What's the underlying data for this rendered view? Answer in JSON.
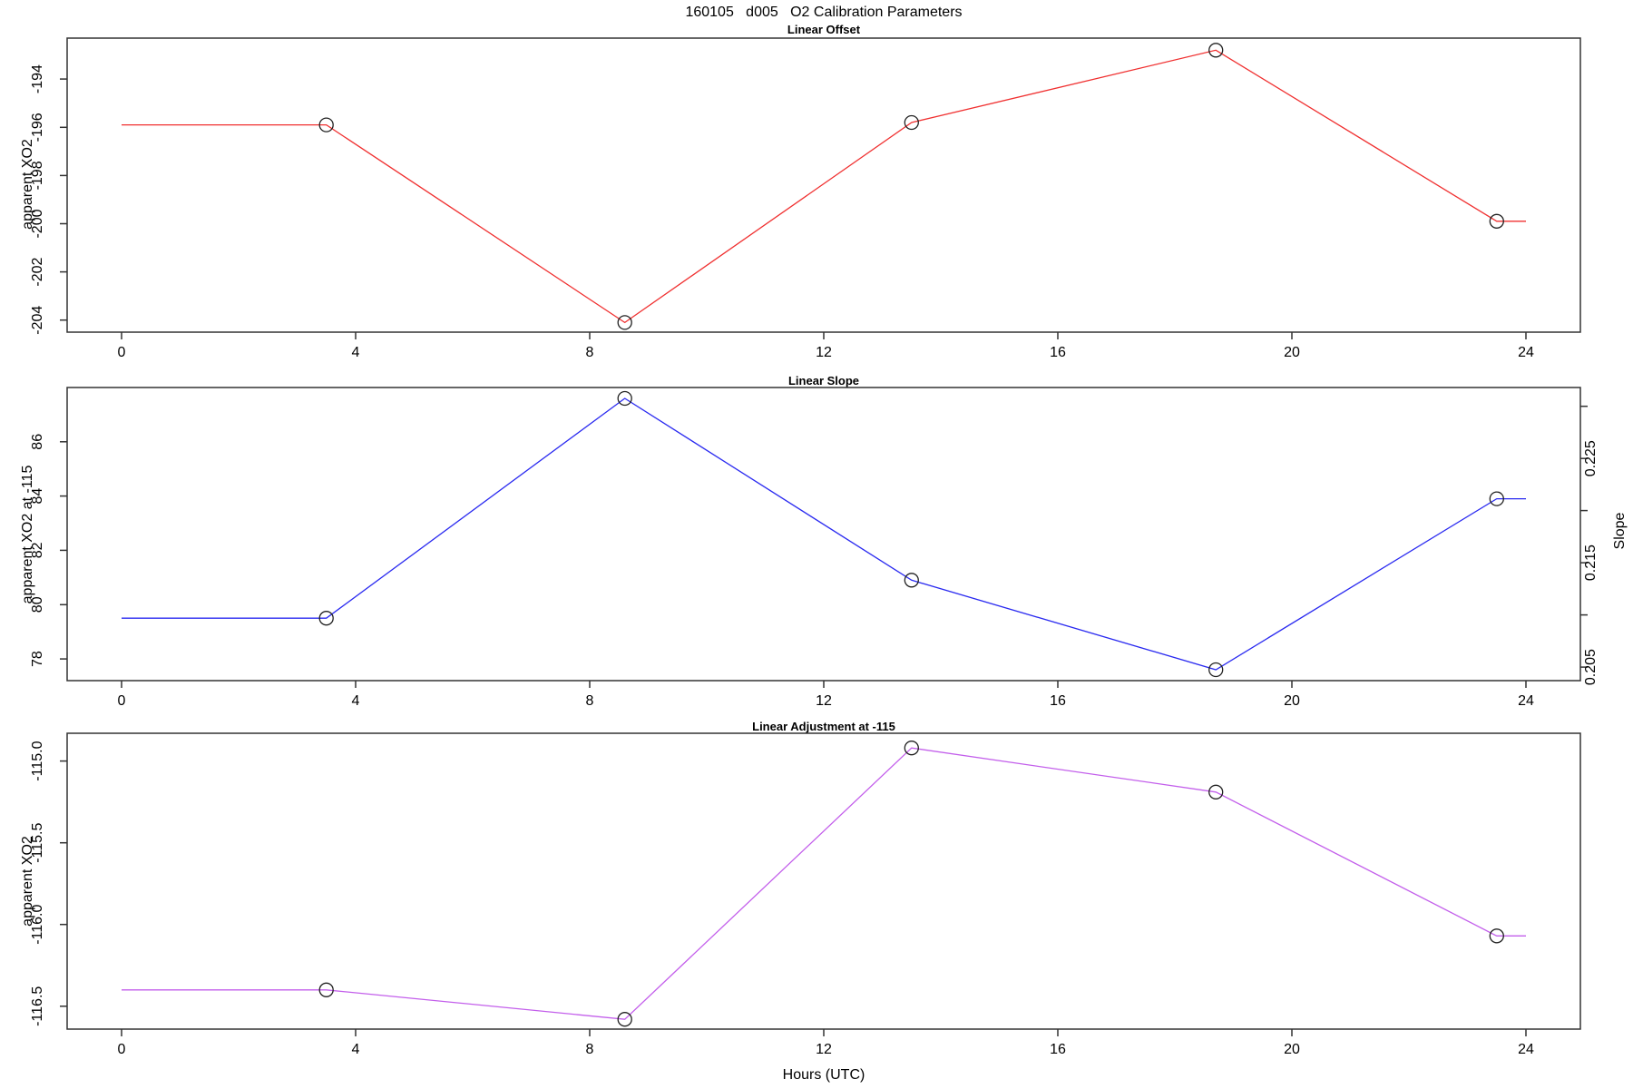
{
  "title": "160105   d005   O2 Calibration Parameters",
  "x_axis": {
    "label": "Hours (UTC)",
    "xlim": [
      -0.93,
      24.93
    ],
    "ticks": [
      {
        "v": 0,
        "label": "0"
      },
      {
        "v": 4,
        "label": "4"
      },
      {
        "v": 8,
        "label": "8"
      },
      {
        "v": 12,
        "label": "12"
      },
      {
        "v": 16,
        "label": "16"
      },
      {
        "v": 20,
        "label": "20"
      },
      {
        "v": 24,
        "label": "24"
      }
    ]
  },
  "style": {
    "box_color": "#333333",
    "marker_color": "#222222",
    "offset_color": "#f03030",
    "slope_color": "#2a2af0",
    "adjustment_color": "#c35feb"
  },
  "chart_data": [
    {
      "type": "line",
      "name": "linear-offset",
      "title": "Linear Offset",
      "ylabel": "apparent XO2",
      "color": "#f03030",
      "marker": "open-circle",
      "grid": false,
      "legend": "none",
      "x": [
        0,
        3.5,
        8.6,
        13.5,
        18.7,
        23.5,
        24
      ],
      "y": [
        -195.9,
        -195.9,
        -204.1,
        -195.8,
        -192.8,
        -199.9,
        -199.9
      ],
      "marker_idx": [
        1,
        2,
        3,
        4,
        5
      ],
      "ylim": [
        -204.5,
        -192.3
      ],
      "yticks": [
        {
          "v": -204,
          "label": "-204"
        },
        {
          "v": -202,
          "label": "-202"
        },
        {
          "v": -200,
          "label": "-200"
        },
        {
          "v": -198,
          "label": "-198"
        },
        {
          "v": -196,
          "label": "-196"
        },
        {
          "v": -194,
          "label": "-194"
        }
      ]
    },
    {
      "type": "line",
      "name": "linear-slope",
      "title": "Linear Slope",
      "ylabel": "apparent XO2 at -115",
      "y2label": "Slope",
      "color": "#2a2af0",
      "marker": "open-circle",
      "grid": false,
      "legend": "none",
      "x": [
        0,
        3.5,
        8.6,
        13.5,
        18.7,
        23.5,
        24
      ],
      "y": [
        79.5,
        79.5,
        87.6,
        80.9,
        77.6,
        83.9,
        83.9
      ],
      "y2_approx": [
        0.21,
        0.21,
        0.231,
        0.213,
        0.205,
        0.221,
        0.221
      ],
      "marker_idx": [
        1,
        2,
        3,
        4,
        5
      ],
      "ylim": [
        77.2,
        88.0
      ],
      "yticks": [
        {
          "v": 78,
          "label": "78"
        },
        {
          "v": 80,
          "label": "80"
        },
        {
          "v": 82,
          "label": "82"
        },
        {
          "v": 84,
          "label": "84"
        },
        {
          "v": 86,
          "label": "86"
        }
      ],
      "y2lim": [
        0.2037,
        0.2318
      ],
      "y2ticks": [
        {
          "v": 0.205,
          "label": "0.205"
        },
        {
          "v": 0.21,
          "label": ""
        },
        {
          "v": 0.215,
          "label": "0.215"
        },
        {
          "v": 0.22,
          "label": ""
        },
        {
          "v": 0.225,
          "label": "0.225"
        },
        {
          "v": 0.23,
          "label": ""
        }
      ]
    },
    {
      "type": "line",
      "name": "linear-adjustment",
      "title": "Linear Adjustment at -115",
      "ylabel": "apparent XO2",
      "color": "#c35feb",
      "marker": "open-circle",
      "grid": false,
      "legend": "none",
      "x": [
        0,
        3.5,
        8.6,
        13.5,
        18.7,
        23.5,
        24
      ],
      "y": [
        -116.4,
        -116.4,
        -116.58,
        -114.92,
        -115.19,
        -116.07,
        -116.07
      ],
      "marker_idx": [
        1,
        2,
        3,
        4,
        5
      ],
      "ylim": [
        -116.64,
        -114.83
      ],
      "yticks": [
        {
          "v": -116.5,
          "label": "-116.5"
        },
        {
          "v": -116.0,
          "label": "-116.0"
        },
        {
          "v": -115.5,
          "label": "-115.5"
        },
        {
          "v": -115.0,
          "label": "-115.0"
        }
      ]
    }
  ]
}
